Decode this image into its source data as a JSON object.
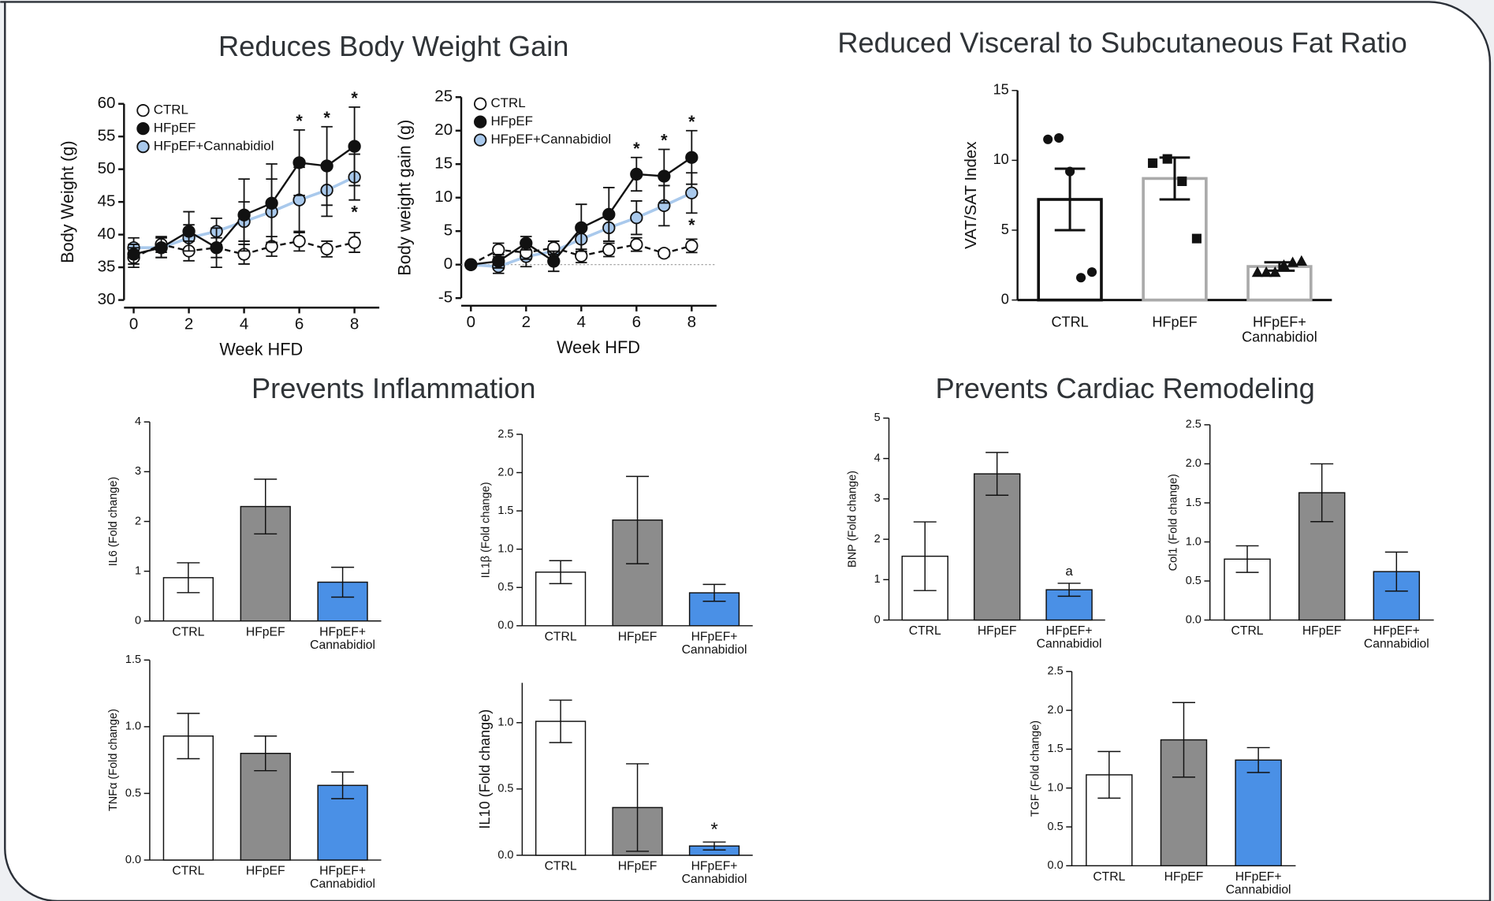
{
  "headings": [
    "Reduces Body Weight Gain",
    "Reduced Visceral to Subcutaneous Fat Ratio",
    "Prevents Inflammation",
    "Prevents Cardiac Remodeling"
  ],
  "chart_data": [
    {
      "type": "line",
      "ylabel": "Body Weight (g)",
      "xlabel": "Week HFD",
      "x": [
        0,
        1,
        2,
        3,
        4,
        5,
        6,
        7,
        8
      ],
      "xlim": [
        -0.35,
        8.9
      ],
      "xticks": [
        0,
        2,
        4,
        6,
        8
      ],
      "ylim": [
        30,
        60
      ],
      "yticks": [
        30,
        35,
        40,
        45,
        50,
        55,
        60
      ],
      "legend": "upper left",
      "series": [
        {
          "name": "CTRL",
          "color": "#111111",
          "marker_fill": "#ffffff",
          "line_style": "dashed",
          "values": [
            36.5,
            38.5,
            37.5,
            38,
            37,
            38.2,
            39,
            37.8,
            38.8
          ],
          "errors": [
            1.5,
            1.2,
            1.5,
            1.5,
            1.5,
            1.5,
            1.5,
            1.2,
            1.5
          ],
          "annotations": [
            null,
            null,
            null,
            null,
            null,
            null,
            null,
            null,
            null
          ]
        },
        {
          "name": "HFpEF",
          "color": "#111111",
          "marker_fill": "#111111",
          "line_style": "solid",
          "values": [
            37,
            38,
            40.5,
            38,
            43,
            44.8,
            51,
            50.5,
            53.5
          ],
          "errors": [
            1.5,
            1.5,
            3,
            3,
            5.5,
            6,
            5,
            6,
            6
          ],
          "annotations": [
            null,
            null,
            null,
            null,
            null,
            null,
            "*",
            "*",
            "*"
          ]
        },
        {
          "name": "HFpEF+Cannabidiol",
          "color": "#a9c9ec",
          "marker_fill": "#a9c9ec",
          "line_style": "solid",
          "values": [
            38,
            38,
            39.5,
            40.5,
            42,
            43.5,
            45.3,
            46.8,
            48.8
          ],
          "errors": [
            1.5,
            1.5,
            2,
            2,
            3,
            5,
            5,
            4,
            3.5
          ],
          "annotations": [
            null,
            null,
            null,
            null,
            null,
            null,
            null,
            null,
            "*"
          ]
        }
      ]
    },
    {
      "type": "line",
      "ylabel": "Body weight gain (g)",
      "xlabel": "Week HFD",
      "x": [
        0,
        1,
        2,
        3,
        4,
        5,
        6,
        7,
        8
      ],
      "xlim": [
        -0.35,
        8.9
      ],
      "xticks": [
        0,
        2,
        4,
        6,
        8
      ],
      "ylim": [
        -5,
        25
      ],
      "yticks": [
        -5,
        0,
        5,
        10,
        15,
        20,
        25
      ],
      "legend": "upper left",
      "zero_line": true,
      "series": [
        {
          "name": "CTRL",
          "color": "#111111",
          "marker_fill": "#ffffff",
          "line_style": "dashed",
          "values": [
            0,
            2.2,
            1.8,
            2.5,
            1.3,
            2.2,
            3,
            1.7,
            2.8
          ],
          "errors": [
            0,
            1,
            1,
            1,
            1,
            1,
            1,
            0.5,
            1
          ],
          "annotations": [
            null,
            null,
            null,
            null,
            null,
            null,
            null,
            null,
            null
          ]
        },
        {
          "name": "HFpEF",
          "color": "#111111",
          "marker_fill": "#111111",
          "line_style": "solid",
          "values": [
            0,
            0.5,
            3.2,
            0.5,
            5.5,
            7.5,
            13.5,
            13.2,
            16
          ],
          "errors": [
            0,
            1,
            1,
            1.5,
            3.5,
            4,
            2.5,
            4,
            4
          ],
          "annotations": [
            null,
            null,
            null,
            null,
            null,
            null,
            "*",
            "*",
            "*"
          ]
        },
        {
          "name": "HFpEF+Cannabidiol",
          "color": "#a9c9ec",
          "marker_fill": "#a9c9ec",
          "line_style": "solid",
          "values": [
            0,
            -0.3,
            1.2,
            2,
            3.8,
            5.5,
            7,
            8.8,
            10.7
          ],
          "errors": [
            0,
            1,
            1.5,
            1.5,
            2,
            2,
            2.5,
            3,
            3
          ],
          "annotations": [
            null,
            null,
            null,
            null,
            null,
            null,
            null,
            null,
            "*"
          ]
        }
      ]
    },
    {
      "type": "bar_scatter",
      "ylabel": "VAT/SAT Index",
      "categories": [
        "CTRL",
        "HFpEF",
        "HFpEF+\nCannabidiol"
      ],
      "values": [
        7.2,
        8.7,
        2.4
      ],
      "errors": [
        2.2,
        1.5,
        0.3
      ],
      "fill": "#ffffff",
      "edge_colors": [
        "#111111",
        "#aaaaaa",
        "#aaaaaa"
      ],
      "markers": [
        "circle",
        "square",
        "triangle"
      ],
      "points": [
        [
          11.5,
          11.6,
          9.2,
          1.6,
          2
        ],
        [
          9.8,
          10.1,
          8.5,
          4.4
        ],
        [
          2,
          2,
          2,
          2.5,
          2.7,
          2.8
        ]
      ],
      "ylim": [
        0,
        15
      ],
      "yticks": [
        0,
        5,
        10,
        15
      ]
    },
    {
      "type": "bar",
      "ylabel": "IL6 (Fold change)",
      "categories": [
        "CTRL",
        "HFpEF",
        "HFpEF+\nCannabidiol"
      ],
      "values": [
        0.87,
        2.3,
        0.78
      ],
      "errors": [
        0.3,
        0.55,
        0.3
      ],
      "colors": [
        "#ffffff",
        "#8c8c8c",
        "#4a90e6"
      ],
      "ylim": [
        0,
        4
      ],
      "yticks": [
        0,
        1,
        2,
        3,
        4
      ],
      "annotations": [
        null,
        null,
        null
      ]
    },
    {
      "type": "bar",
      "ylabel": "IL1β (Fold change)",
      "categories": [
        "CTRL",
        "HFpEF",
        "HFpEF+\nCannabidiol"
      ],
      "values": [
        0.7,
        1.38,
        0.43
      ],
      "errors": [
        0.15,
        0.57,
        0.11
      ],
      "colors": [
        "#ffffff",
        "#8c8c8c",
        "#4a90e6"
      ],
      "ylim": [
        0,
        2.5
      ],
      "yticks": [
        {
          "value": 0,
          "label": "0.0"
        },
        0.5,
        {
          "value": 1,
          "label": "1.0"
        },
        1.5,
        {
          "value": 2,
          "label": "2.0"
        },
        2.5
      ],
      "annotations": [
        null,
        null,
        null
      ]
    },
    {
      "type": "bar",
      "ylabel": "TNFα (Fold change)",
      "categories": [
        "CTRL",
        "HFpEF",
        "HFpEF+\nCannabidiol"
      ],
      "values": [
        0.93,
        0.8,
        0.56
      ],
      "errors": [
        0.17,
        0.13,
        0.1
      ],
      "colors": [
        "#ffffff",
        "#8c8c8c",
        "#4a90e6"
      ],
      "ylim": [
        0,
        1.5
      ],
      "yticks": [
        {
          "value": 0,
          "label": "0.0"
        },
        0.5,
        {
          "value": 1,
          "label": "1.0"
        },
        1.5
      ],
      "annotations": [
        null,
        null,
        null
      ]
    },
    {
      "type": "bar",
      "ylabel": "IL10 (Fold change)",
      "categories": [
        "CTRL",
        "HFpEF",
        "HFpEF+\nCannabidiol"
      ],
      "values": [
        1.01,
        0.36,
        0.07
      ],
      "errors": [
        0.16,
        0.33,
        0.03
      ],
      "colors": [
        "#ffffff",
        "#8c8c8c",
        "#4a90e6"
      ],
      "ylim": [
        0,
        1.3
      ],
      "yticks": [
        {
          "value": 0,
          "label": "0.0"
        },
        0.5,
        {
          "value": 1,
          "label": "1.0"
        }
      ],
      "annotations": [
        null,
        null,
        "*"
      ]
    },
    {
      "type": "bar",
      "ylabel": "BNP (Fold change)",
      "categories": [
        "CTRL",
        "HFpEF",
        "HFpEF+\nCannabidiol"
      ],
      "values": [
        1.58,
        3.62,
        0.75
      ],
      "errors": [
        0.85,
        0.53,
        0.16
      ],
      "colors": [
        "#ffffff",
        "#8c8c8c",
        "#4a90e6"
      ],
      "ylim": [
        0,
        5
      ],
      "yticks": [
        0,
        1,
        2,
        3,
        4,
        5
      ],
      "annotations": [
        null,
        null,
        "a"
      ]
    },
    {
      "type": "bar",
      "ylabel": "Col1 (Fold change)",
      "categories": [
        "CTRL",
        "HFpEF",
        "HFpEF+\nCannabidiol"
      ],
      "values": [
        0.78,
        1.63,
        0.62
      ],
      "errors": [
        0.17,
        0.37,
        0.25
      ],
      "colors": [
        "#ffffff",
        "#8c8c8c",
        "#4a90e6"
      ],
      "ylim": [
        0,
        2.5
      ],
      "yticks": [
        {
          "value": 0,
          "label": "0.0"
        },
        0.5,
        {
          "value": 1,
          "label": "1.0"
        },
        1.5,
        {
          "value": 2,
          "label": "2.0"
        },
        2.5
      ],
      "annotations": [
        null,
        null,
        null
      ]
    },
    {
      "type": "bar",
      "ylabel": "TGF (Fold change)",
      "categories": [
        "CTRL",
        "HFpEF",
        "HFpEF+\nCannabidiol"
      ],
      "values": [
        1.17,
        1.62,
        1.36
      ],
      "errors": [
        0.3,
        0.48,
        0.16
      ],
      "colors": [
        "#ffffff",
        "#8c8c8c",
        "#4a90e6"
      ],
      "ylim": [
        0,
        2.5
      ],
      "yticks": [
        {
          "value": 0,
          "label": "0.0"
        },
        0.5,
        {
          "value": 1,
          "label": "1.0"
        },
        1.5,
        {
          "value": 2,
          "label": "2.0"
        },
        2.5
      ],
      "annotations": [
        null,
        null,
        null
      ]
    }
  ]
}
